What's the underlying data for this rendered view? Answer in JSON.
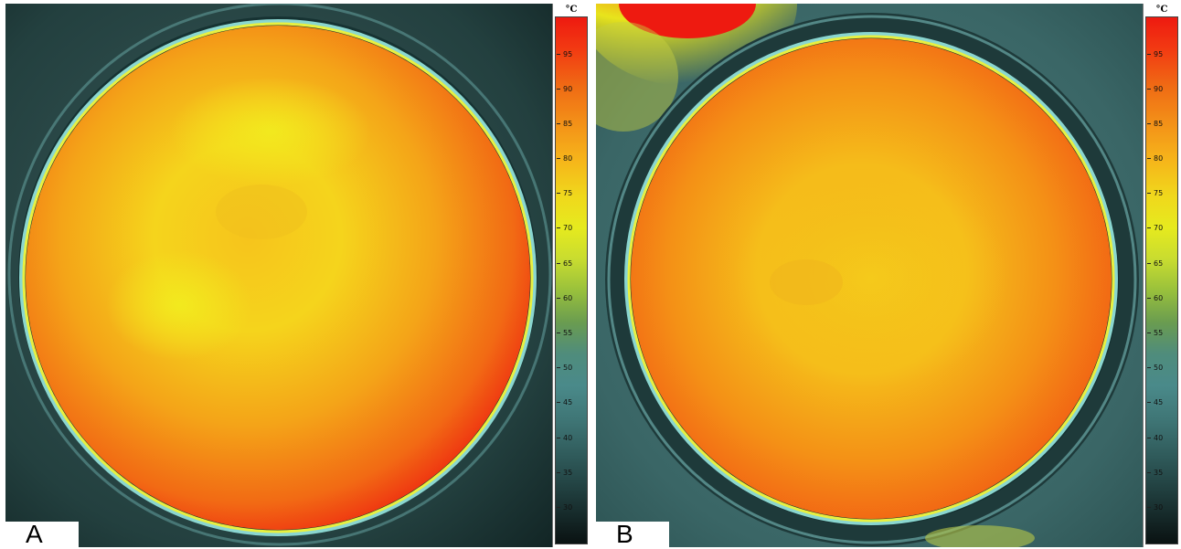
{
  "panels": [
    {
      "id": "A",
      "label": "A"
    },
    {
      "id": "B",
      "label": "B"
    }
  ],
  "scale": {
    "unit": "°C",
    "ticks": [
      "95",
      "90",
      "85",
      "80",
      "75",
      "70",
      "65",
      "60",
      "55",
      "50",
      "45",
      "40",
      "35",
      "30"
    ]
  },
  "colors": {
    "hot_edge": "#ee2a10",
    "orange": "#f37a14",
    "yellow": "#f2e01a",
    "ring_cyan": "#7fc8c8",
    "background_teal": "#2a4a4a"
  }
}
